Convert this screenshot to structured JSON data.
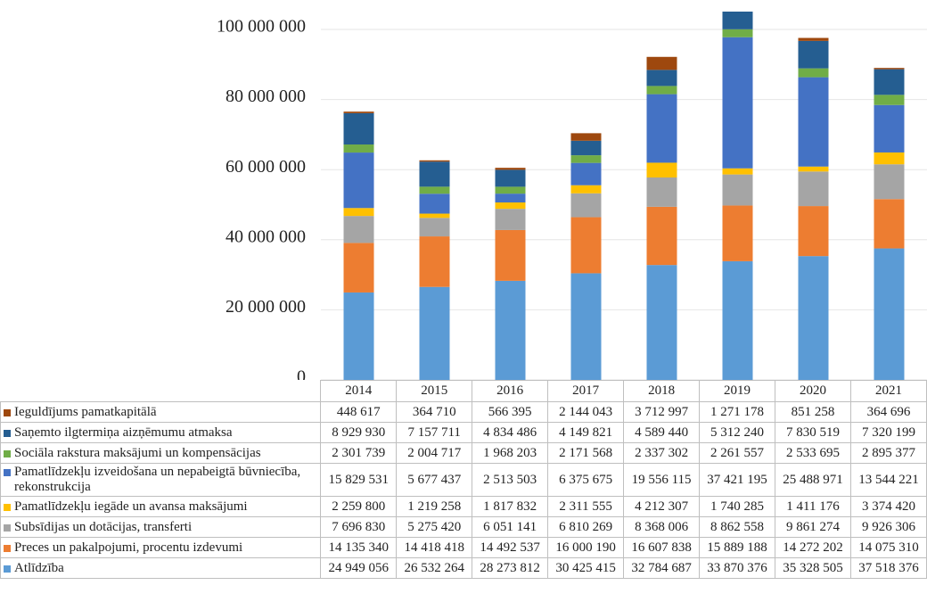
{
  "chart_data": {
    "type": "stacked_bar",
    "categories": [
      "2014",
      "2015",
      "2016",
      "2017",
      "2018",
      "2019",
      "2020",
      "2021"
    ],
    "ylim": [
      0,
      105000000
    ],
    "yticks": [
      0,
      {
        "value": 20000000,
        "label": "20 000 000"
      },
      {
        "value": 40000000,
        "label": "40 000 000"
      },
      {
        "value": 60000000,
        "label": "60 000 000"
      },
      {
        "value": 80000000,
        "label": "80 000 000"
      },
      {
        "value": 100000000,
        "label": "100 000 000"
      }
    ],
    "grid": true,
    "series": [
      {
        "name": "Atlīdzība",
        "color": "#5b9bd5",
        "values": [
          24949056,
          26532264,
          28273812,
          30425415,
          32784687,
          33870376,
          35328505,
          37518376
        ],
        "value_labels": [
          "24 949 056",
          "26 532 264",
          "28 273 812",
          "30 425 415",
          "32 784 687",
          "33 870 376",
          "35 328 505",
          "37 518 376"
        ]
      },
      {
        "name": "Preces un pakalpojumi, procentu izdevumi",
        "color": "#ed7d31",
        "values": [
          14135340,
          14418418,
          14492537,
          16000190,
          16607838,
          15889188,
          14272202,
          14075310
        ],
        "value_labels": [
          "14 135 340",
          "14 418 418",
          "14 492 537",
          "16 000 190",
          "16 607 838",
          "15 889 188",
          "14 272 202",
          "14 075 310"
        ]
      },
      {
        "name": "Subsīdijas un dotācijas, transferti",
        "color": "#a5a5a5",
        "values": [
          7696830,
          5275420,
          6051141,
          6810269,
          8368006,
          8862558,
          9861274,
          9926306
        ],
        "value_labels": [
          "7 696 830",
          "5 275 420",
          "6 051 141",
          "6 810 269",
          "8 368 006",
          "8 862 558",
          "9 861 274",
          "9 926 306"
        ]
      },
      {
        "name": "Pamatlīdzekļu iegāde un avansa maksājumi",
        "color": "#ffc000",
        "values": [
          2259800,
          1219258,
          1817832,
          2311555,
          4212307,
          1740285,
          1411176,
          3374420
        ],
        "value_labels": [
          "2 259 800",
          "1 219 258",
          "1 817 832",
          "2 311 555",
          "4 212 307",
          "1 740 285",
          "1 411 176",
          "3 374 420"
        ]
      },
      {
        "name": "Pamatlīdzekļu izveidošana un nepabeigtā būvniecība, rekonstrukcija",
        "color": "#4472c4",
        "values": [
          15829531,
          5677437,
          2513503,
          6375675,
          19556115,
          37421195,
          25488971,
          13544221
        ],
        "value_labels": [
          "15 829 531",
          "5 677 437",
          "2 513 503",
          "6 375 675",
          "19 556 115",
          "37 421 195",
          "25 488 971",
          "13 544 221"
        ]
      },
      {
        "name": "Sociāla rakstura maksājumi un kompensācijas",
        "color": "#70ad47",
        "values": [
          2301739,
          2004717,
          1968203,
          2171568,
          2337302,
          2261557,
          2533695,
          2895377
        ],
        "value_labels": [
          "2 301 739",
          "2 004 717",
          "1 968 203",
          "2 171 568",
          "2 337 302",
          "2 261 557",
          "2 533 695",
          "2 895 377"
        ]
      },
      {
        "name": "Saņemto ilgtermiņa aizņēmumu atmaksa",
        "color": "#255e91",
        "values": [
          8929930,
          7157711,
          4834486,
          4149821,
          4589440,
          5312240,
          7830519,
          7320199
        ],
        "value_labels": [
          "8 929 930",
          "7 157 711",
          "4 834 486",
          "4 149 821",
          "4 589 440",
          "5 312 240",
          "7 830 519",
          "7 320 199"
        ]
      },
      {
        "name": "Ieguldījums pamatkapitālā",
        "color": "#9e480e",
        "values": [
          448617,
          364710,
          566395,
          2144043,
          3712997,
          1271178,
          851258,
          364696
        ],
        "value_labels": [
          "448 617",
          "364 710",
          "566 395",
          "2 144 043",
          "3 712 997",
          "1 271 178",
          "851 258",
          "364 696"
        ]
      }
    ]
  }
}
